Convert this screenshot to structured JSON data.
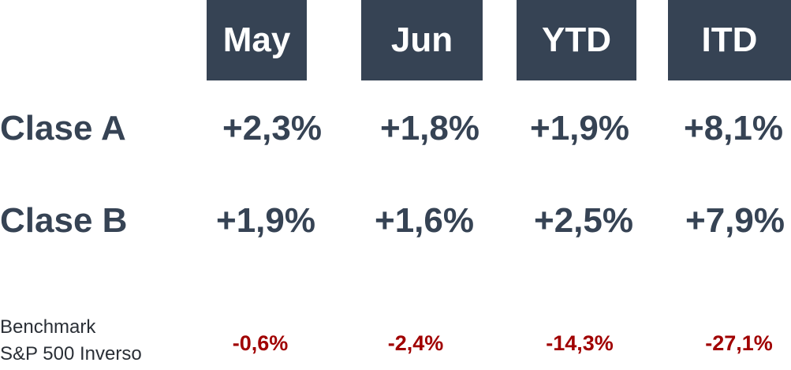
{
  "table": {
    "header": [
      "May",
      "Jun",
      "YTD",
      "ITD"
    ],
    "rows": [
      {
        "label": [
          "Clase A"
        ],
        "cells": [
          "+2,3%",
          "+1,8%",
          "+1,9%",
          "+8,1%"
        ]
      },
      {
        "label": [
          "Clase B"
        ],
        "cells": [
          "+1,9%",
          "+1,6%",
          "+2,5%",
          "+7,9%"
        ]
      },
      {
        "label": [
          "Benchmark",
          "S&P 500 Inverso"
        ],
        "cells": [
          "-0,6%",
          "-2,4%",
          "-14,3%",
          "-27,1%"
        ]
      }
    ]
  }
}
